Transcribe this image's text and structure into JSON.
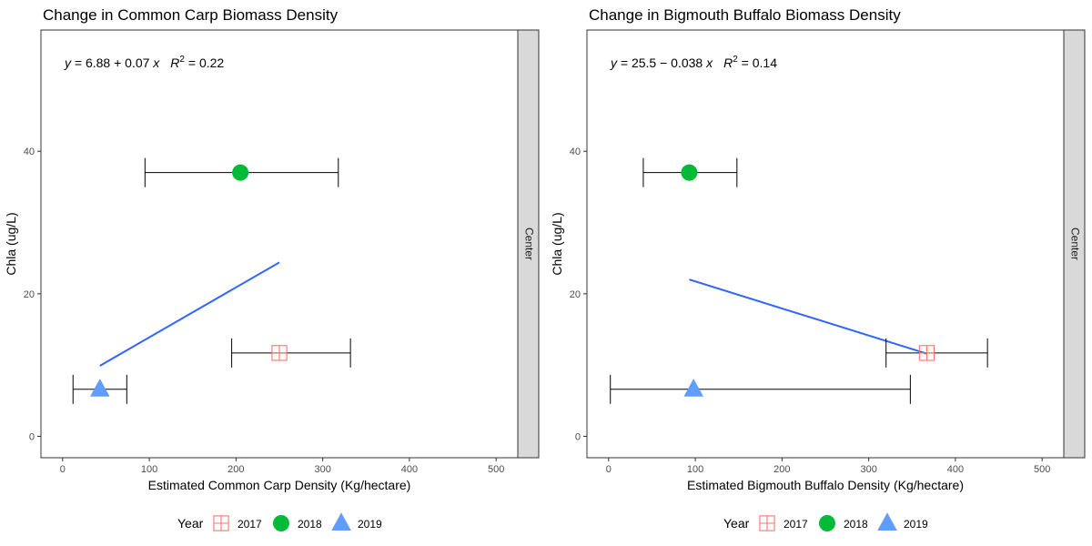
{
  "chart_data": [
    {
      "type": "scatter",
      "title": "Change in Common Carp Biomass Density",
      "xlabel": "Estimated Common Carp Density (Kg/hectare)",
      "ylabel": "Chla (ug/L)",
      "facet_label": "Center",
      "xlim": [
        -25,
        525
      ],
      "ylim": [
        -3,
        57
      ],
      "x_ticks": [
        0,
        100,
        200,
        300,
        400,
        500
      ],
      "y_ticks": [
        0,
        20,
        40
      ],
      "equation": {
        "lhs": "y",
        "rhs": " = 6.88 + 0.07 ",
        "var": "x",
        "r2_label": "R",
        "r2_value": " = 0.22"
      },
      "points": [
        {
          "year": "2017",
          "x": 250,
          "y": 11.7,
          "xmin": 195,
          "xmax": 332
        },
        {
          "year": "2018",
          "x": 205,
          "y": 37.0,
          "xmin": 95,
          "xmax": 318
        },
        {
          "year": "2019",
          "x": 43,
          "y": 6.6,
          "xmin": 12,
          "xmax": 74
        }
      ],
      "fit_line": {
        "x": [
          43,
          250
        ],
        "y": [
          9.9,
          24.4
        ]
      }
    },
    {
      "type": "scatter",
      "title": "Change in Bigmouth Buffalo Biomass Density",
      "xlabel": "Estimated Bigmouth Buffalo Density (Kg/hectare)",
      "ylabel": "Chla (ug/L)",
      "facet_label": "Center",
      "xlim": [
        -25,
        525
      ],
      "ylim": [
        -3,
        57
      ],
      "x_ticks": [
        0,
        100,
        200,
        300,
        400,
        500
      ],
      "y_ticks": [
        0,
        20,
        40
      ],
      "equation": {
        "lhs": "y",
        "rhs": " = 25.5 − 0.038 ",
        "var": "x",
        "r2_label": "R",
        "r2_value": " = 0.14"
      },
      "points": [
        {
          "year": "2017",
          "x": 367,
          "y": 11.7,
          "xmin": 320,
          "xmax": 437
        },
        {
          "year": "2018",
          "x": 93,
          "y": 37.0,
          "xmin": 40,
          "xmax": 148
        },
        {
          "year": "2019",
          "x": 98,
          "y": 6.6,
          "xmin": 2,
          "xmax": 348
        }
      ],
      "fit_line": {
        "x": [
          93,
          367
        ],
        "y": [
          22.0,
          11.6
        ]
      }
    }
  ],
  "legend": {
    "title": "Year",
    "items": [
      {
        "label": "2017",
        "shape": "square-cross",
        "color": "#F8766D"
      },
      {
        "label": "2018",
        "shape": "circle",
        "color": "#00BA38"
      },
      {
        "label": "2019",
        "shape": "triangle",
        "color": "#619CFF"
      }
    ]
  },
  "colors": {
    "fit_line": "#3366FF",
    "strip_fill": "#D9D9D9",
    "errorbar": "#000000"
  }
}
